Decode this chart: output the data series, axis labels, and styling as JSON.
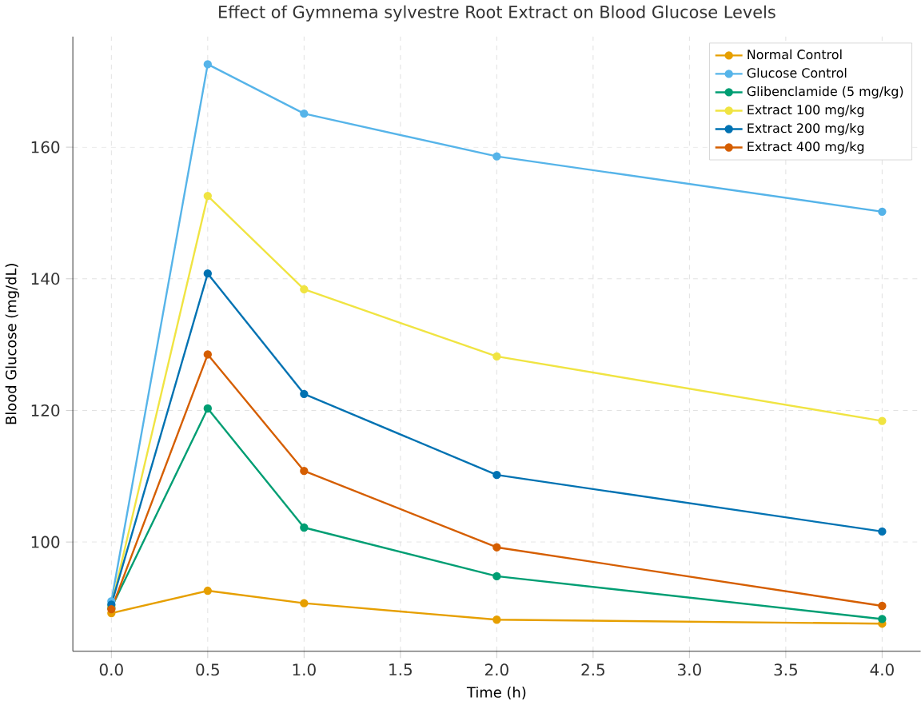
{
  "chart_data": {
    "type": "line",
    "title": "Effect of Gymnema sylvestre Root Extract on Blood Glucose Levels",
    "xlabel": "Time (h)",
    "ylabel": "Blood Glucose (mg/dL)",
    "x": [
      0,
      0.5,
      1,
      2,
      4
    ],
    "xlim": [
      -0.2,
      4.2
    ],
    "xticks": [
      {
        "value": 0,
        "label": "0.0"
      },
      0.5,
      {
        "value": 1,
        "label": "1.0"
      },
      1.5,
      {
        "value": 2,
        "label": "2.0"
      },
      2.5,
      {
        "value": 3,
        "label": "3.0"
      },
      3.5,
      {
        "value": 4,
        "label": "4.0"
      }
    ],
    "ylim": [
      83.4,
      176.8
    ],
    "yticks": [
      100,
      120,
      140,
      160
    ],
    "grid": true,
    "legend": "top right",
    "marker": "circle",
    "line_style": "solid",
    "series": [
      {
        "name": "Normal Control",
        "color": "#e69f00",
        "values": [
          89.2,
          92.6,
          90.7,
          88.2,
          87.6
        ]
      },
      {
        "name": "Glucose Control",
        "color": "#56b4e9",
        "values": [
          91,
          172.6,
          165.1,
          158.6,
          150.2
        ]
      },
      {
        "name": "Glibenclamide (5 mg/kg)",
        "color": "#009e73",
        "values": [
          90,
          120.3,
          102.2,
          94.8,
          88.3
        ]
      },
      {
        "name": "Extract 100 mg/kg",
        "color": "#f0e442",
        "values": [
          90.3,
          152.6,
          138.4,
          128.2,
          118.4
        ]
      },
      {
        "name": "Extract 200 mg/kg",
        "color": "#0072b2",
        "values": [
          90.5,
          140.8,
          122.5,
          110.2,
          101.6
        ]
      },
      {
        "name": "Extract 400 mg/kg",
        "color": "#d55e00",
        "values": [
          89.8,
          128.5,
          110.8,
          99.2,
          90.3
        ]
      }
    ]
  }
}
